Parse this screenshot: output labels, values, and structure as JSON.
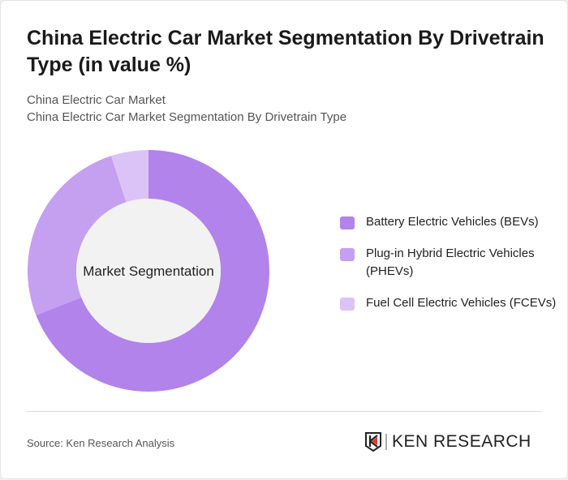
{
  "title": "China Electric Car Market Segmentation By Drivetrain Type (in value %)",
  "subtitle1": "China Electric Car Market",
  "subtitle2": "China Electric Car Market Segmentation By Drivetrain Type",
  "source": "Source: Ken Research Analysis",
  "logo": "KEN RESEARCH",
  "chart_data": {
    "type": "pie",
    "style": "donut",
    "center_label": "Market Segmentation",
    "categories": [
      "Battery Electric Vehicles (BEVs)",
      "Plug-in Hybrid Electric Vehicles (PHEVs)",
      "Fuel Cell Electric Vehicles (FCEVs)"
    ],
    "values": [
      69,
      26,
      5
    ],
    "colors": [
      "#b283ea",
      "#c59ff0",
      "#dcc3f7"
    ],
    "legend_placement": "right"
  }
}
